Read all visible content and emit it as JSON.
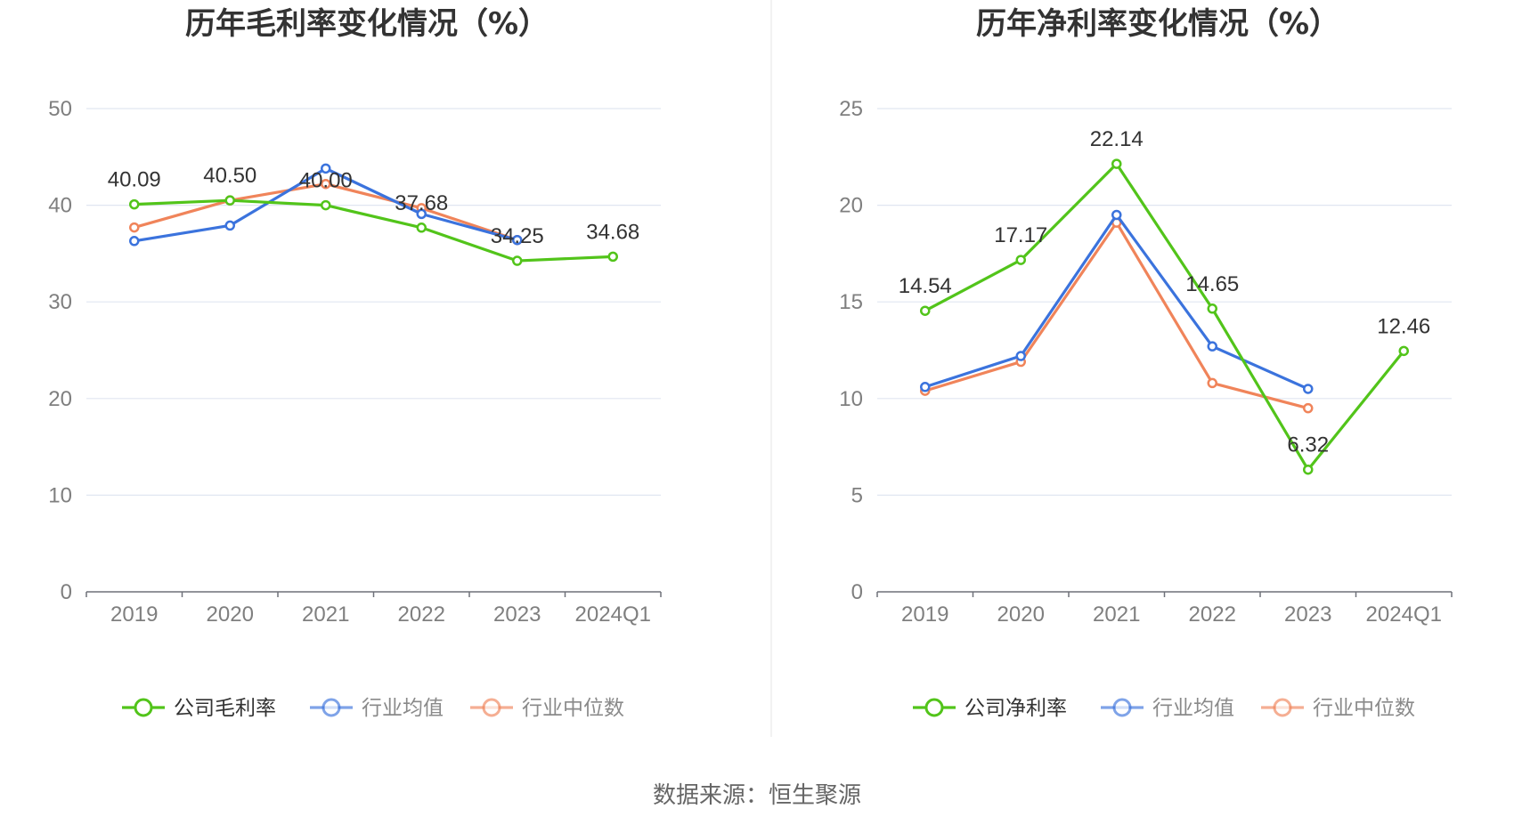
{
  "source_text": "数据来源：恒生聚源",
  "chart_data": [
    {
      "type": "line",
      "title": "历年毛利率变化情况（%）",
      "categories": [
        "2019",
        "2020",
        "2021",
        "2022",
        "2023",
        "2024Q1"
      ],
      "ylim": [
        0,
        50
      ],
      "yticks": [
        0,
        10,
        20,
        30,
        40,
        50
      ],
      "grid": true,
      "legend_position": "bottom",
      "labeled_series": 0,
      "series": [
        {
          "name": "公司毛利率",
          "color": "#52c41a",
          "values": [
            40.09,
            40.5,
            40.0,
            37.68,
            34.25,
            34.68
          ],
          "labels": [
            "40.09",
            "40.50",
            "40.00",
            "37.68",
            "34.25",
            "34.68"
          ]
        },
        {
          "name": "行业均值",
          "color": "#3b73dd",
          "values": [
            36.3,
            37.9,
            43.8,
            39.1,
            36.4,
            null
          ]
        },
        {
          "name": "行业中位数",
          "color": "#f0845a",
          "values": [
            37.7,
            40.5,
            42.2,
            39.7,
            36.4,
            null
          ]
        }
      ]
    },
    {
      "type": "line",
      "title": "历年净利率变化情况（%）",
      "categories": [
        "2019",
        "2020",
        "2021",
        "2022",
        "2023",
        "2024Q1"
      ],
      "ylim": [
        0,
        25
      ],
      "yticks": [
        0,
        5,
        10,
        15,
        20,
        25
      ],
      "grid": true,
      "legend_position": "bottom",
      "labeled_series": 0,
      "series": [
        {
          "name": "公司净利率",
          "color": "#52c41a",
          "values": [
            14.54,
            17.17,
            22.14,
            14.65,
            6.32,
            12.46
          ],
          "labels": [
            "14.54",
            "17.17",
            "22.14",
            "14.65",
            "6.32",
            "12.46"
          ]
        },
        {
          "name": "行业均值",
          "color": "#3b73dd",
          "values": [
            10.6,
            12.2,
            19.5,
            12.7,
            10.5,
            null
          ]
        },
        {
          "name": "行业中位数",
          "color": "#f0845a",
          "values": [
            10.4,
            11.9,
            19.1,
            10.8,
            9.5,
            null
          ]
        }
      ]
    }
  ]
}
